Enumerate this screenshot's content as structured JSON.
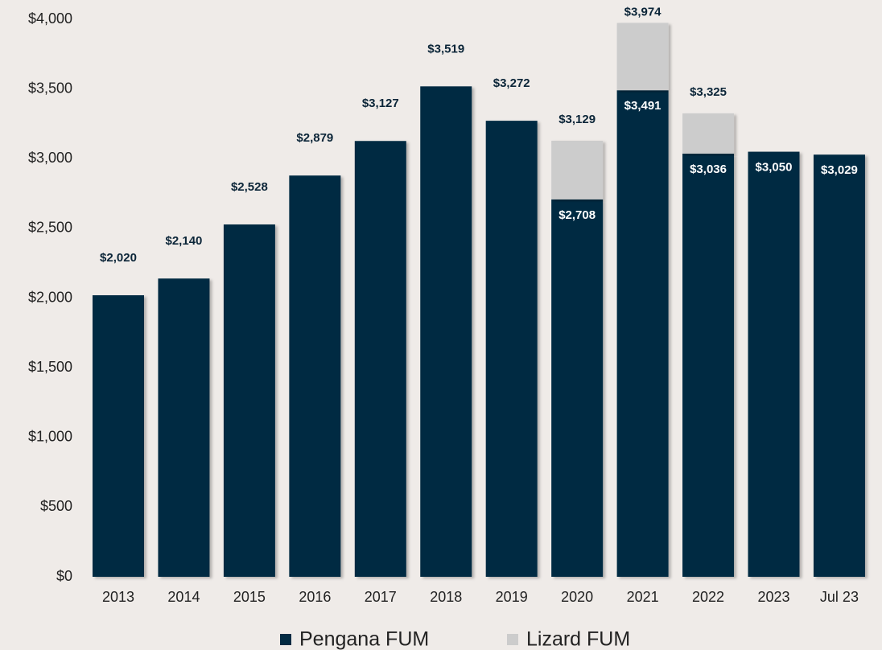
{
  "chart_data": {
    "type": "stacked_bar",
    "categories": [
      "2013",
      "2014",
      "2015",
      "2016",
      "2017",
      "2018",
      "2019",
      "2020",
      "2021",
      "2022",
      "2023",
      "Jul 23"
    ],
    "series": [
      {
        "name": "Pengana FUM",
        "color": "#022a42",
        "values": [
          2020,
          2140,
          2528,
          2879,
          3127,
          3519,
          3272,
          2708,
          3491,
          3036,
          3050,
          3029
        ],
        "value_labels": [
          "$2,020",
          "$2,140",
          "$2,528",
          "$2,879",
          "$3,127",
          "$3,519",
          "$3,272",
          "$2,708",
          "$3,491",
          "$3,036",
          "$3,050",
          "$3,029"
        ]
      },
      {
        "name": "Lizard FUM",
        "color": "#cccccc",
        "values": [
          null,
          null,
          null,
          null,
          null,
          null,
          null,
          421,
          483,
          289,
          null,
          null
        ]
      }
    ],
    "totals": {
      "values": [
        null,
        null,
        null,
        null,
        null,
        null,
        null,
        3129,
        3974,
        3325,
        null,
        null
      ],
      "value_labels": [
        null,
        null,
        null,
        null,
        null,
        null,
        null,
        "$3,129",
        "$3,974",
        "$3,325",
        null,
        null
      ]
    },
    "ylim": [
      0,
      4000
    ],
    "yticks": [
      {
        "value": 0,
        "label": "$0"
      },
      {
        "value": 500,
        "label": "$500"
      },
      {
        "value": 1000,
        "label": "$1,000"
      },
      {
        "value": 1500,
        "label": "$1,500"
      },
      {
        "value": 2000,
        "label": "$2,000"
      },
      {
        "value": 2500,
        "label": "$2,500"
      },
      {
        "value": 3000,
        "label": "$3,000"
      },
      {
        "value": 3500,
        "label": "$3,500"
      },
      {
        "value": 4000,
        "label": "$4,000"
      }
    ],
    "legend": "bottom"
  }
}
